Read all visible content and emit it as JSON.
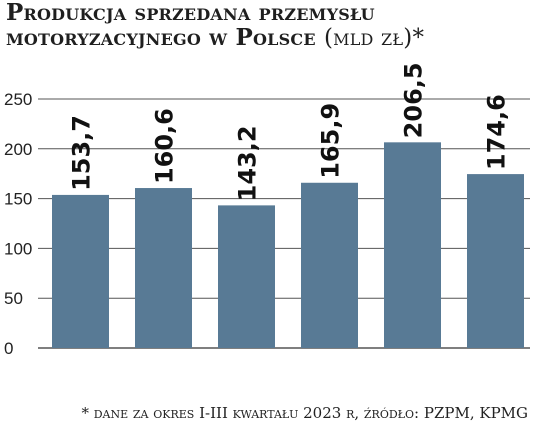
{
  "chart_data": {
    "type": "bar",
    "title_main": "Produkcja sprzedana przemysłu motoryzacyjnego w Polsce",
    "title_unit": "(mld zł)*",
    "categories": [
      "",
      "",
      "",
      "",
      "",
      ""
    ],
    "values": [
      153.7,
      160.6,
      143.2,
      165.9,
      206.5,
      174.6
    ],
    "data_labels": [
      "153,7",
      "160,6",
      "143,2",
      "165,9",
      "206,5",
      "174,6"
    ],
    "y_ticks": [
      0,
      50,
      100,
      150,
      200,
      250
    ],
    "y_tick_labels": [
      "0",
      "50",
      "100",
      "150",
      "200",
      "250"
    ],
    "ylim": [
      0,
      250
    ],
    "grid": true,
    "bar_color": "#587a95",
    "grid_color": "#555555",
    "footnote": "* dane za okres I-III kwartału 2023 r, źródło: PZPM, KPMG"
  }
}
